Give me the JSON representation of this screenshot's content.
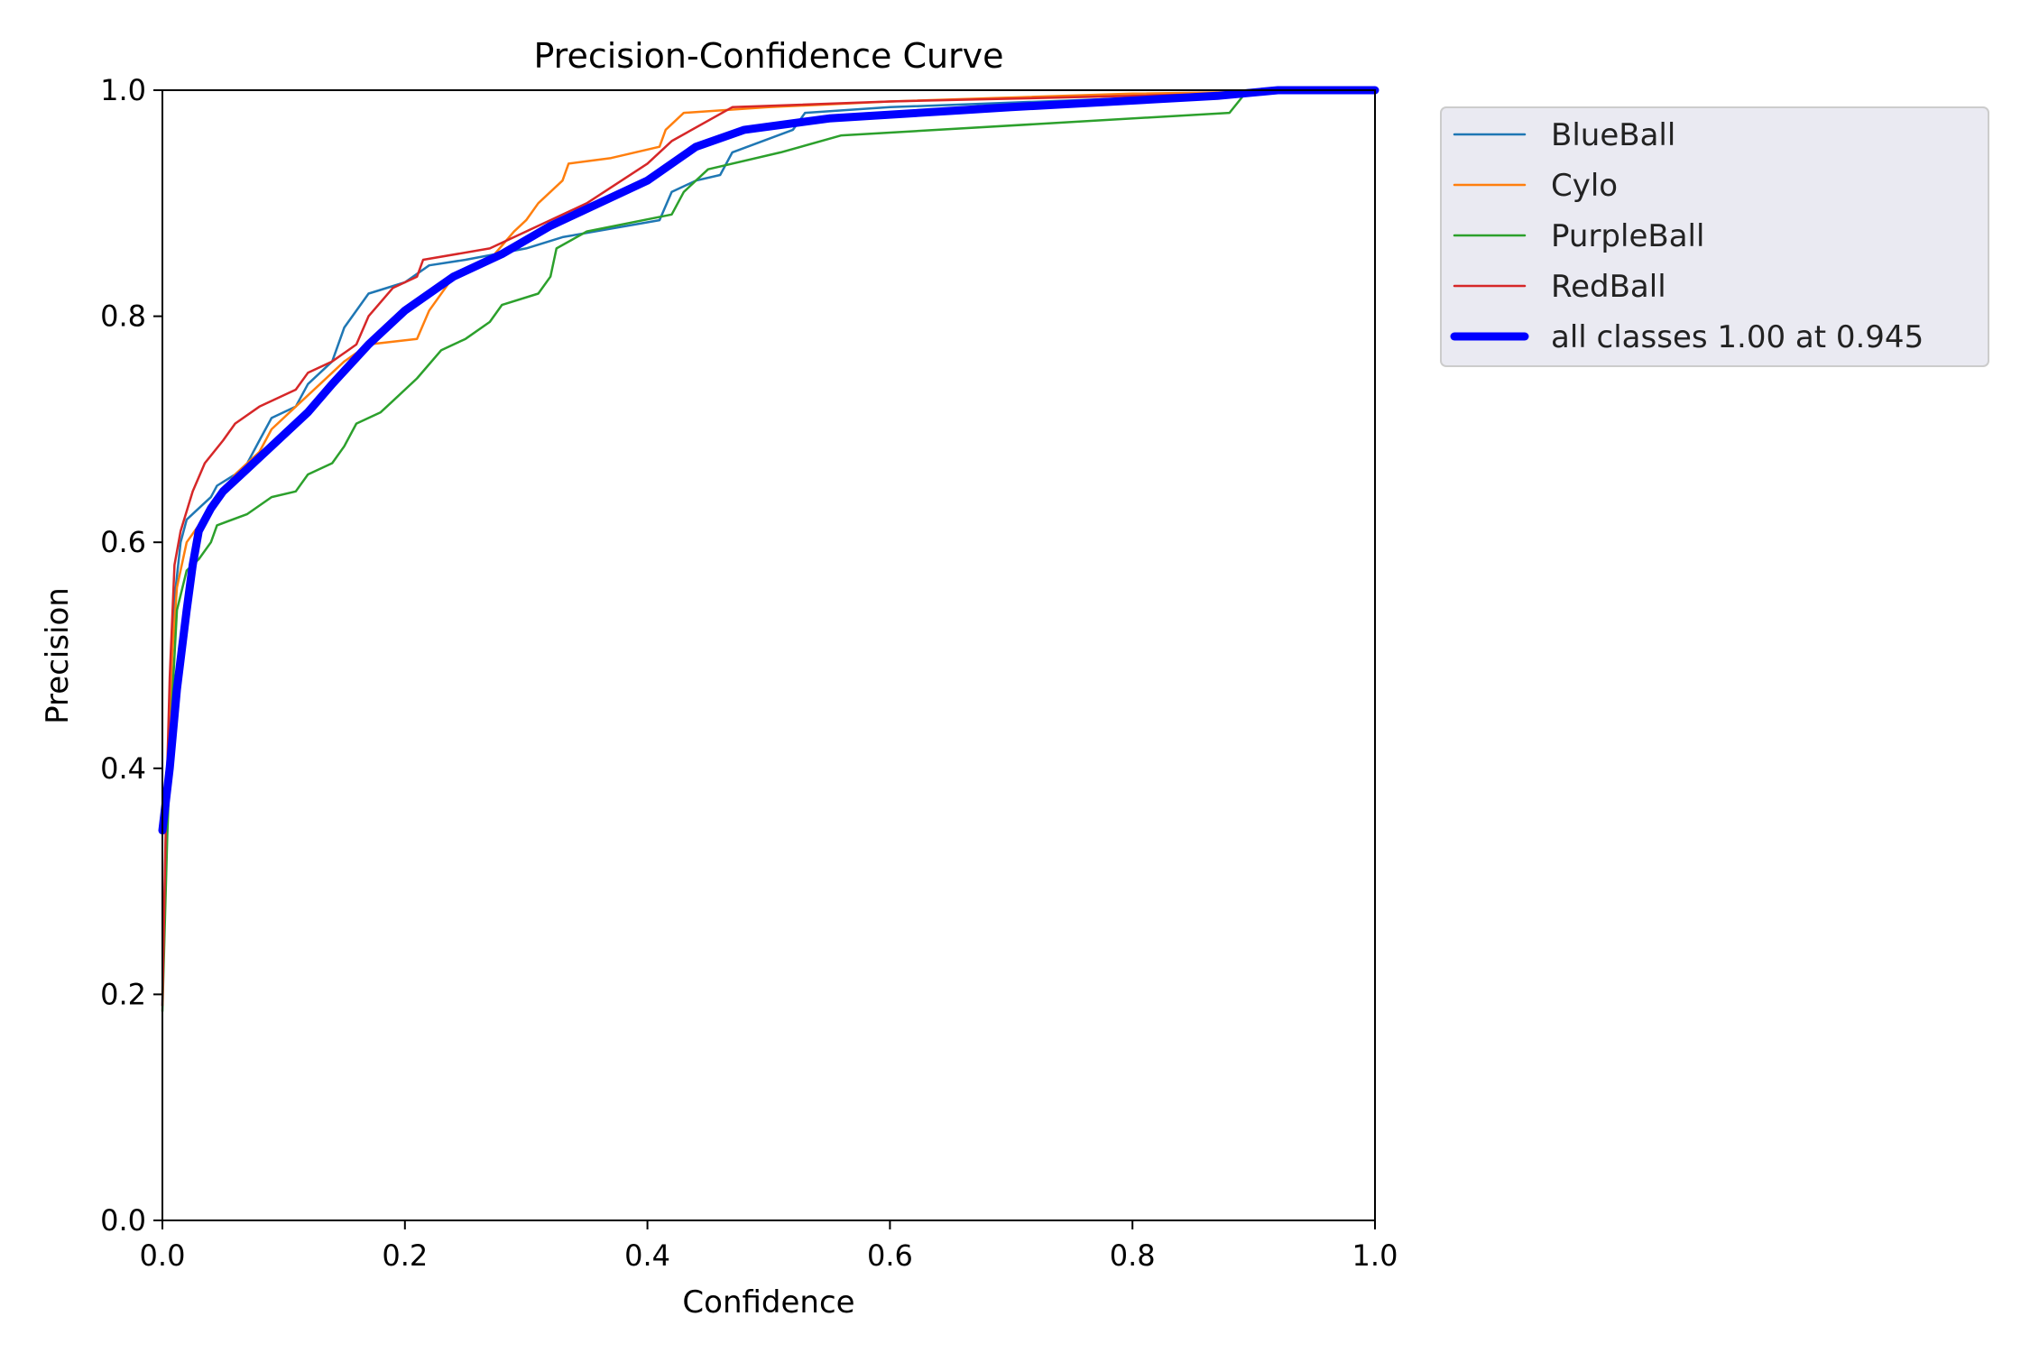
{
  "chart_data": {
    "type": "line",
    "title": "Precision-Confidence Curve",
    "xlabel": "Confidence",
    "ylabel": "Precision",
    "xlim": [
      0,
      1
    ],
    "ylim": [
      0,
      1
    ],
    "xticks": [
      "0.0",
      "0.2",
      "0.4",
      "0.6",
      "0.8",
      "1.0"
    ],
    "yticks": [
      "0.0",
      "0.2",
      "0.4",
      "0.6",
      "0.8",
      "1.0"
    ],
    "grid": false,
    "legend_position": "outside-top-right",
    "series": [
      {
        "name": "BlueBall",
        "color": "#1f77b4",
        "points": [
          [
            0.0,
            0.19
          ],
          [
            0.003,
            0.35
          ],
          [
            0.006,
            0.45
          ],
          [
            0.01,
            0.55
          ],
          [
            0.015,
            0.6
          ],
          [
            0.02,
            0.62
          ],
          [
            0.03,
            0.63
          ],
          [
            0.04,
            0.64
          ],
          [
            0.045,
            0.65
          ],
          [
            0.06,
            0.66
          ],
          [
            0.07,
            0.67
          ],
          [
            0.08,
            0.69
          ],
          [
            0.09,
            0.71
          ],
          [
            0.11,
            0.72
          ],
          [
            0.12,
            0.74
          ],
          [
            0.14,
            0.76
          ],
          [
            0.15,
            0.79
          ],
          [
            0.17,
            0.82
          ],
          [
            0.2,
            0.83
          ],
          [
            0.22,
            0.845
          ],
          [
            0.25,
            0.85
          ],
          [
            0.3,
            0.86
          ],
          [
            0.33,
            0.87
          ],
          [
            0.41,
            0.885
          ],
          [
            0.42,
            0.91
          ],
          [
            0.44,
            0.92
          ],
          [
            0.46,
            0.925
          ],
          [
            0.47,
            0.945
          ],
          [
            0.52,
            0.965
          ],
          [
            0.53,
            0.98
          ],
          [
            0.6,
            0.985
          ],
          [
            0.9,
            0.997
          ],
          [
            1.0,
            1.0
          ]
        ]
      },
      {
        "name": "Cylo",
        "color": "#ff7f0e",
        "points": [
          [
            0.0,
            0.2
          ],
          [
            0.004,
            0.38
          ],
          [
            0.008,
            0.5
          ],
          [
            0.012,
            0.56
          ],
          [
            0.02,
            0.6
          ],
          [
            0.03,
            0.615
          ],
          [
            0.04,
            0.63
          ],
          [
            0.05,
            0.645
          ],
          [
            0.06,
            0.66
          ],
          [
            0.08,
            0.68
          ],
          [
            0.09,
            0.7
          ],
          [
            0.11,
            0.72
          ],
          [
            0.13,
            0.74
          ],
          [
            0.15,
            0.76
          ],
          [
            0.17,
            0.775
          ],
          [
            0.21,
            0.78
          ],
          [
            0.22,
            0.805
          ],
          [
            0.24,
            0.835
          ],
          [
            0.27,
            0.85
          ],
          [
            0.29,
            0.875
          ],
          [
            0.3,
            0.885
          ],
          [
            0.31,
            0.9
          ],
          [
            0.33,
            0.92
          ],
          [
            0.335,
            0.935
          ],
          [
            0.37,
            0.94
          ],
          [
            0.41,
            0.95
          ],
          [
            0.415,
            0.965
          ],
          [
            0.43,
            0.98
          ],
          [
            0.5,
            0.985
          ],
          [
            0.6,
            0.99
          ],
          [
            0.8,
            0.997
          ],
          [
            1.0,
            1.0
          ]
        ]
      },
      {
        "name": "PurpleBall",
        "color": "#2ca02c",
        "points": [
          [
            0.0,
            0.185
          ],
          [
            0.004,
            0.34
          ],
          [
            0.008,
            0.46
          ],
          [
            0.012,
            0.54
          ],
          [
            0.02,
            0.575
          ],
          [
            0.03,
            0.585
          ],
          [
            0.04,
            0.6
          ],
          [
            0.045,
            0.615
          ],
          [
            0.07,
            0.625
          ],
          [
            0.09,
            0.64
          ],
          [
            0.11,
            0.645
          ],
          [
            0.12,
            0.66
          ],
          [
            0.14,
            0.67
          ],
          [
            0.15,
            0.685
          ],
          [
            0.16,
            0.705
          ],
          [
            0.18,
            0.715
          ],
          [
            0.19,
            0.725
          ],
          [
            0.21,
            0.745
          ],
          [
            0.23,
            0.77
          ],
          [
            0.25,
            0.78
          ],
          [
            0.27,
            0.795
          ],
          [
            0.28,
            0.81
          ],
          [
            0.31,
            0.82
          ],
          [
            0.32,
            0.835
          ],
          [
            0.325,
            0.86
          ],
          [
            0.35,
            0.875
          ],
          [
            0.42,
            0.89
          ],
          [
            0.43,
            0.91
          ],
          [
            0.45,
            0.93
          ],
          [
            0.51,
            0.945
          ],
          [
            0.56,
            0.96
          ],
          [
            0.88,
            0.98
          ],
          [
            0.895,
            1.0
          ],
          [
            1.0,
            1.0
          ]
        ]
      },
      {
        "name": "RedBall",
        "color": "#d62728",
        "points": [
          [
            0.0,
            0.19
          ],
          [
            0.003,
            0.36
          ],
          [
            0.006,
            0.48
          ],
          [
            0.01,
            0.58
          ],
          [
            0.015,
            0.61
          ],
          [
            0.025,
            0.645
          ],
          [
            0.035,
            0.67
          ],
          [
            0.05,
            0.69
          ],
          [
            0.06,
            0.705
          ],
          [
            0.08,
            0.72
          ],
          [
            0.11,
            0.735
          ],
          [
            0.12,
            0.75
          ],
          [
            0.14,
            0.76
          ],
          [
            0.16,
            0.775
          ],
          [
            0.17,
            0.8
          ],
          [
            0.19,
            0.825
          ],
          [
            0.21,
            0.835
          ],
          [
            0.215,
            0.85
          ],
          [
            0.27,
            0.86
          ],
          [
            0.3,
            0.875
          ],
          [
            0.35,
            0.9
          ],
          [
            0.4,
            0.935
          ],
          [
            0.42,
            0.955
          ],
          [
            0.47,
            0.985
          ],
          [
            0.6,
            0.99
          ],
          [
            1.0,
            1.0
          ]
        ]
      },
      {
        "name": "all classes 1.00 at 0.945",
        "color": "#0000ff",
        "thick": true,
        "points": [
          [
            0.0,
            0.345
          ],
          [
            0.006,
            0.4
          ],
          [
            0.012,
            0.47
          ],
          [
            0.02,
            0.54
          ],
          [
            0.025,
            0.58
          ],
          [
            0.03,
            0.61
          ],
          [
            0.04,
            0.63
          ],
          [
            0.05,
            0.645
          ],
          [
            0.07,
            0.665
          ],
          [
            0.09,
            0.685
          ],
          [
            0.12,
            0.715
          ],
          [
            0.14,
            0.74
          ],
          [
            0.17,
            0.775
          ],
          [
            0.2,
            0.805
          ],
          [
            0.24,
            0.835
          ],
          [
            0.28,
            0.855
          ],
          [
            0.32,
            0.88
          ],
          [
            0.36,
            0.9
          ],
          [
            0.4,
            0.92
          ],
          [
            0.44,
            0.95
          ],
          [
            0.48,
            0.965
          ],
          [
            0.55,
            0.975
          ],
          [
            0.7,
            0.985
          ],
          [
            0.87,
            0.995
          ],
          [
            0.92,
            1.0
          ],
          [
            1.0,
            1.0
          ]
        ]
      }
    ]
  }
}
